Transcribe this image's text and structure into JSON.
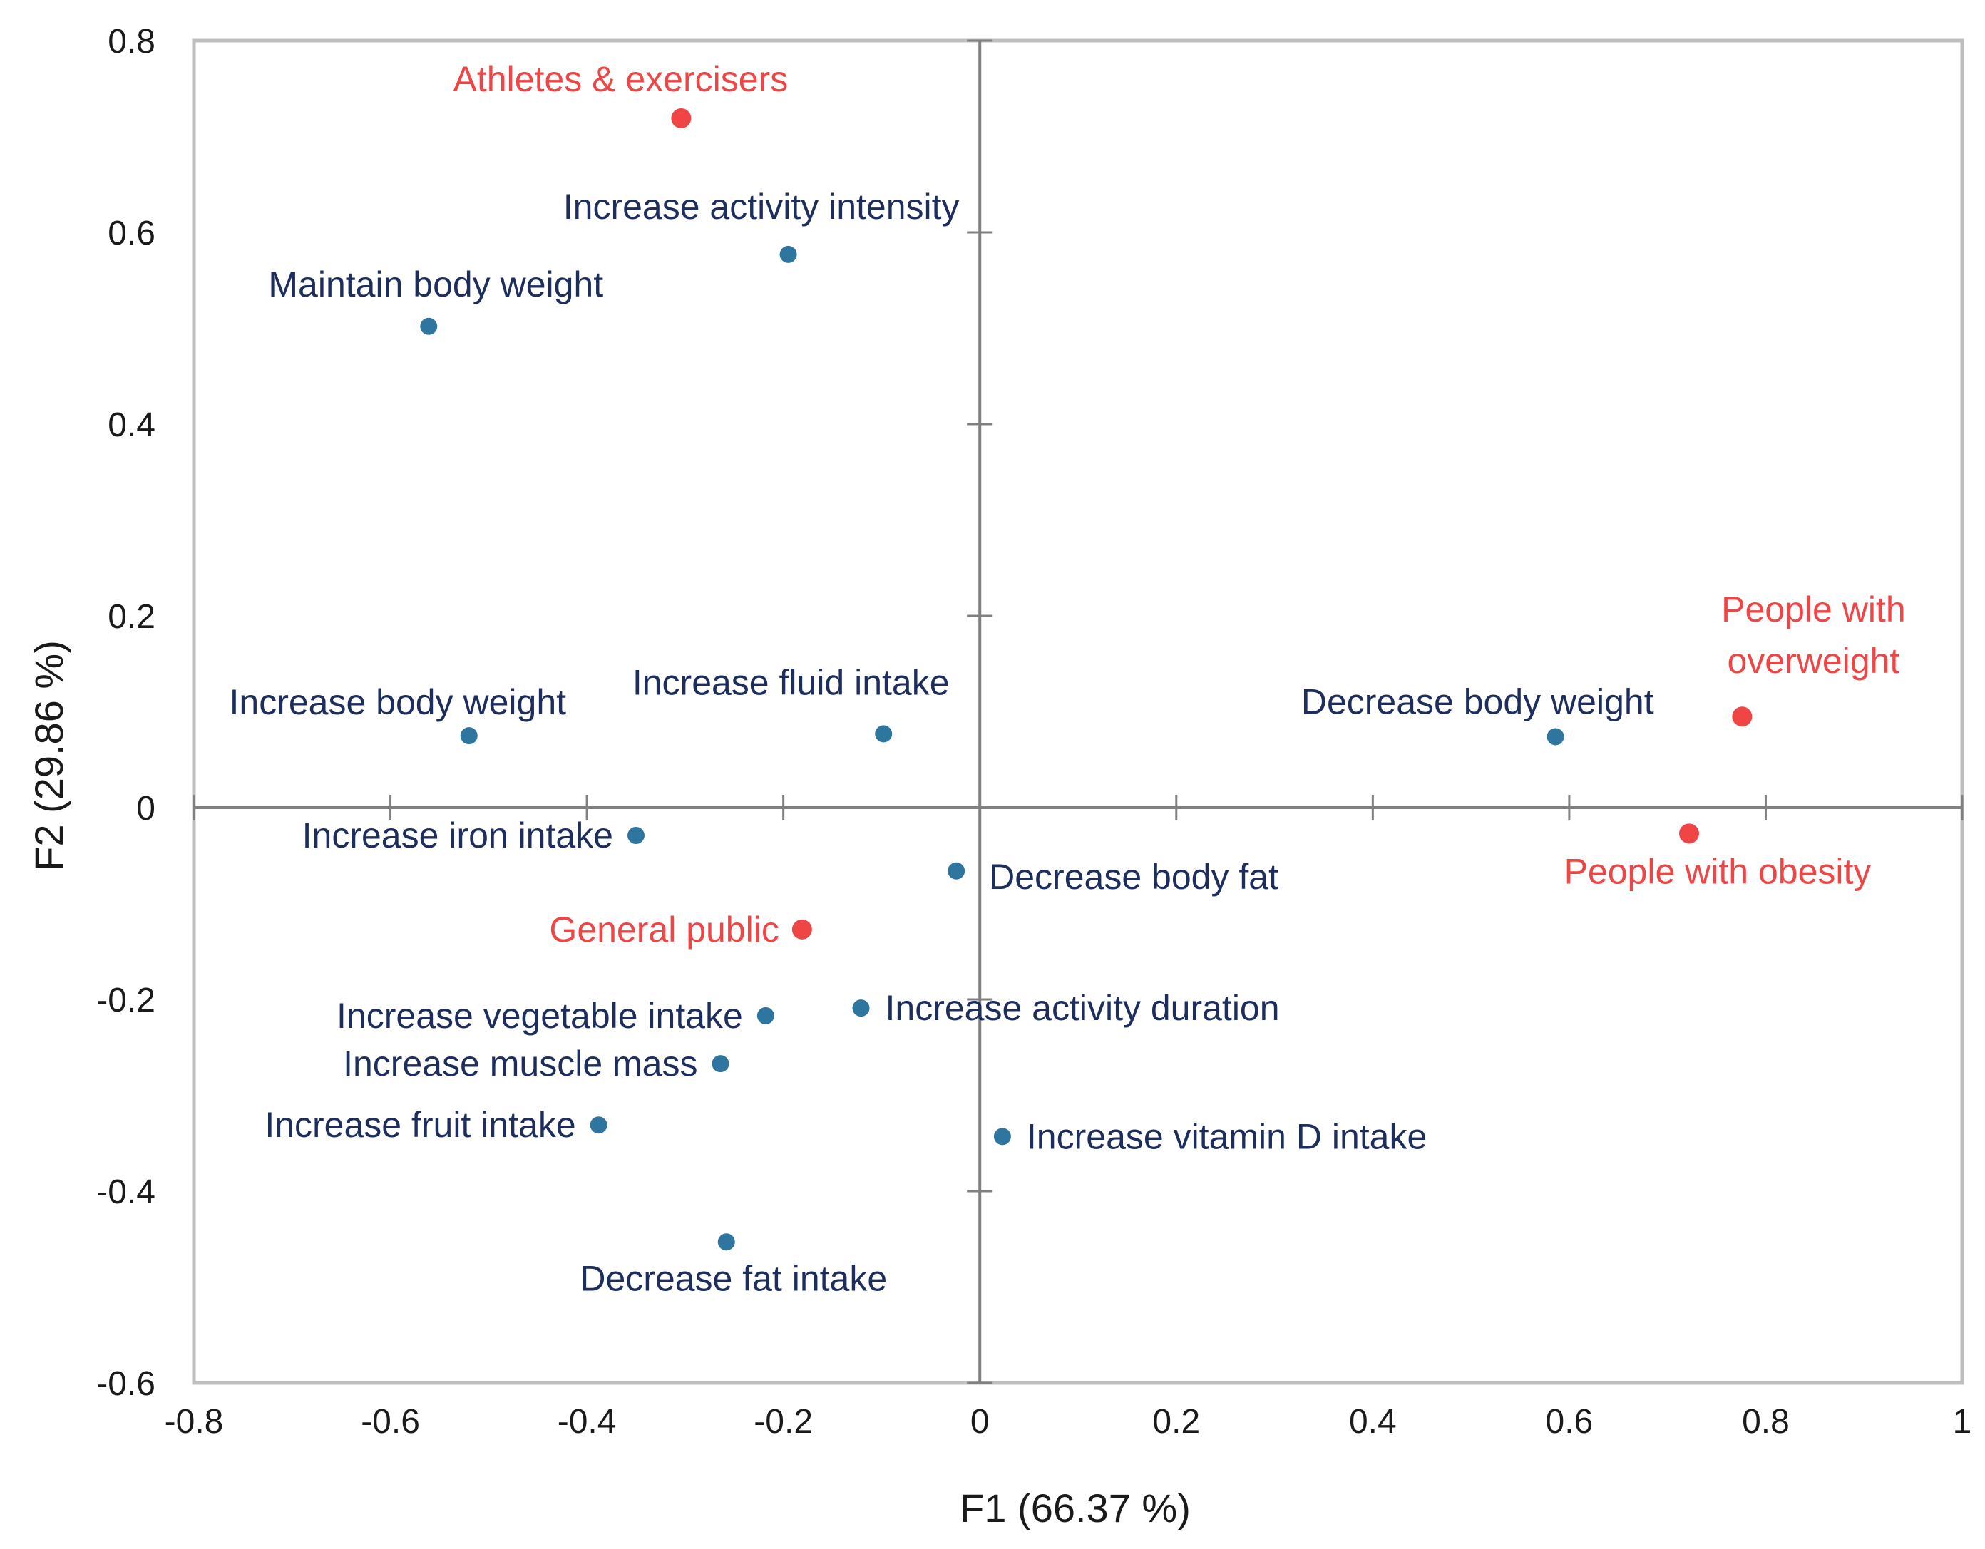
{
  "chart_data": {
    "type": "scatter",
    "title": "",
    "xlabel": "F1 (66.37 %)",
    "ylabel": "F2 (29.86 %)",
    "xlim": [
      -0.8,
      1
    ],
    "ylim": [
      -0.6,
      0.8
    ],
    "x_ticks": [
      -0.8,
      -0.6,
      -0.4,
      -0.2,
      0,
      0.2,
      0.4,
      0.6,
      0.8,
      1
    ],
    "y_ticks": [
      -0.6,
      -0.4,
      -0.2,
      0,
      0.2,
      0.4,
      0.6,
      0.8
    ],
    "x_tick_labels": [
      "-0.8",
      "-0.6",
      "-0.4",
      "-0.2",
      "0",
      "0.2",
      "0.4",
      "0.6",
      "0.8",
      "1"
    ],
    "y_tick_labels": [
      "-0.6",
      "-0.4",
      "-0.2",
      "0",
      "0.2",
      "0.4",
      "0.6",
      "0.8"
    ],
    "grid": false,
    "colors": {
      "variables": "#2e75a0",
      "variable_labels": "#1c2d5e",
      "groups": "#f04545",
      "group_labels": "#f04545",
      "axes": "#808080",
      "frame": "#bfbfbf"
    },
    "series": [
      {
        "name": "Goals",
        "points": [
          {
            "label": "Increase activity intensity",
            "x": -0.195,
            "y": 0.577,
            "anchor": "end",
            "pos": "above-left"
          },
          {
            "label": "Maintain body weight",
            "x": -0.561,
            "y": 0.502,
            "anchor": "middle",
            "pos": "above"
          },
          {
            "label": "Increase body weight",
            "x": -0.52,
            "y": 0.075,
            "anchor": "middle",
            "pos": "above-left"
          },
          {
            "label": "Increase fluid intake",
            "x": -0.098,
            "y": 0.077,
            "anchor": "middle",
            "pos": "above-left"
          },
          {
            "label": "Decrease body weight",
            "x": 0.586,
            "y": 0.074,
            "anchor": "end",
            "pos": "above-left"
          },
          {
            "label": "Increase iron intake",
            "x": -0.35,
            "y": -0.029,
            "anchor": "end",
            "pos": "left"
          },
          {
            "label": "Decrease body fat",
            "x": -0.024,
            "y": -0.066,
            "anchor": "start",
            "pos": "right-below"
          },
          {
            "label": "Increase vegetable intake",
            "x": -0.218,
            "y": -0.217,
            "anchor": "end",
            "pos": "left"
          },
          {
            "label": "Increase activity duration",
            "x": -0.121,
            "y": -0.209,
            "anchor": "start",
            "pos": "right"
          },
          {
            "label": "Increase muscle mass",
            "x": -0.264,
            "y": -0.267,
            "anchor": "end",
            "pos": "left"
          },
          {
            "label": "Increase fruit intake",
            "x": -0.388,
            "y": -0.331,
            "anchor": "end",
            "pos": "left"
          },
          {
            "label": "Increase vitamin D intake",
            "x": 0.023,
            "y": -0.343,
            "anchor": "start",
            "pos": "right"
          },
          {
            "label": "Decrease fat intake",
            "x": -0.258,
            "y": -0.453,
            "anchor": "middle",
            "pos": "below"
          }
        ]
      },
      {
        "name": "Target groups",
        "points": [
          {
            "label": "Athletes & exercisers",
            "x": -0.304,
            "y": 0.719,
            "anchor": "middle",
            "pos": "above"
          },
          {
            "label": "People with",
            "label2": "overweight",
            "x": 0.776,
            "y": 0.095,
            "anchor": "middle",
            "pos": "above"
          },
          {
            "label": "People with obesity",
            "x": 0.722,
            "y": -0.027,
            "anchor": "middle",
            "pos": "below"
          },
          {
            "label": "General public",
            "x": -0.181,
            "y": -0.127,
            "anchor": "end",
            "pos": "left"
          }
        ]
      }
    ]
  }
}
